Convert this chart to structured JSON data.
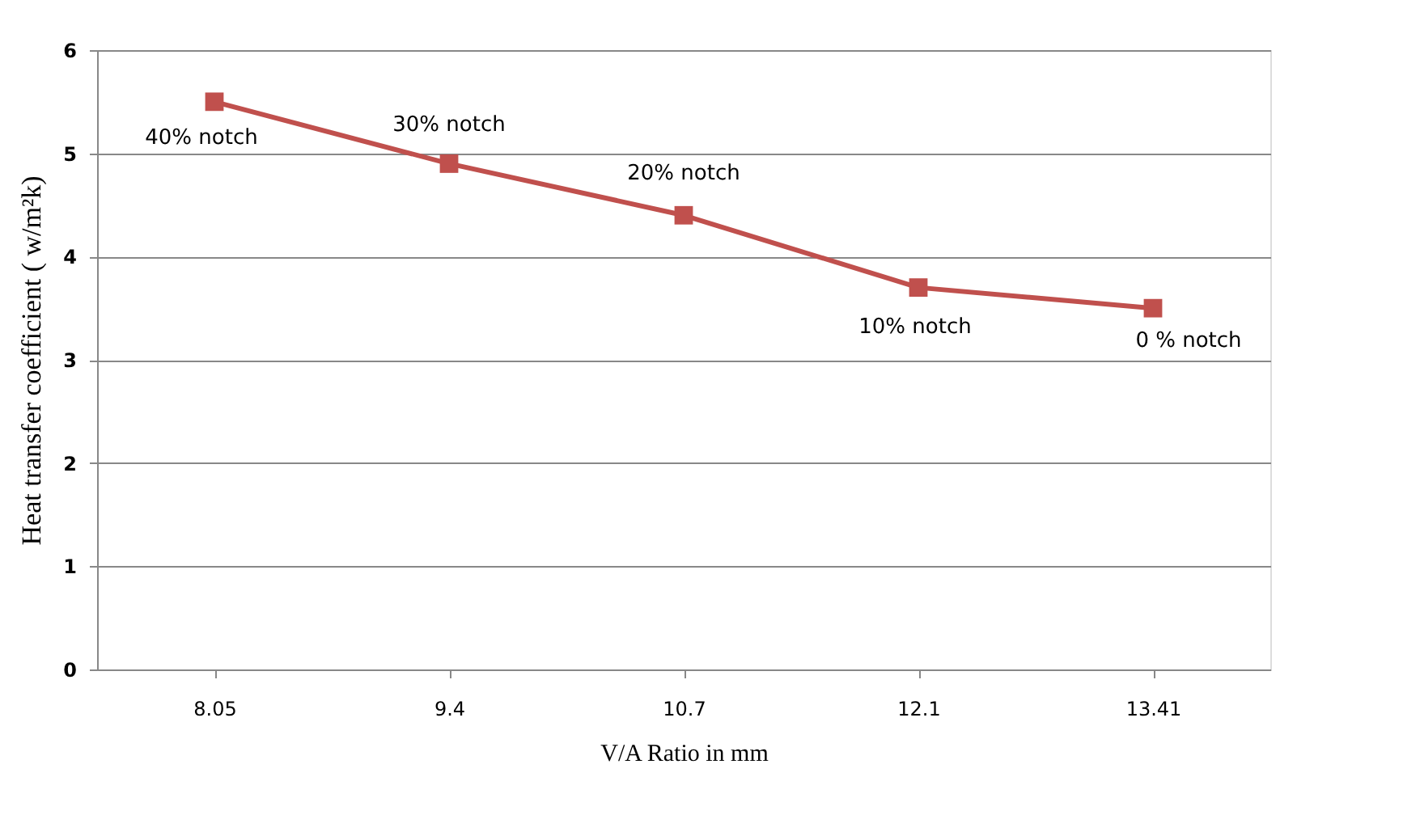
{
  "chart_data": {
    "type": "line",
    "xlabel": "V/A Ratio in mm",
    "ylabel": "Heat transfer coefficient ( w/m²k)",
    "categories": [
      "8.05",
      "9.4",
      "10.7",
      "12.1",
      "13.41"
    ],
    "series": [
      {
        "color": "#c0504d",
        "values": [
          5.5,
          4.9,
          4.4,
          3.7,
          3.5
        ]
      }
    ],
    "ylim": [
      0,
      6
    ],
    "yticks": [
      0,
      1,
      2,
      3,
      4,
      5,
      6
    ],
    "grid": "y",
    "marker": "square",
    "line_style": "solid",
    "annotations": [
      {
        "text": "40%  notch",
        "x": "8.05",
        "y": 5.5
      },
      {
        "text": "30% notch",
        "x": "9.4",
        "y": 4.9
      },
      {
        "text": "20%  notch",
        "x": "10.7",
        "y": 4.4
      },
      {
        "text": "10%  notch",
        "x": "12.1",
        "y": 3.7
      },
      {
        "text": "0 % notch",
        "x": "13.41",
        "y": 3.5
      }
    ]
  }
}
